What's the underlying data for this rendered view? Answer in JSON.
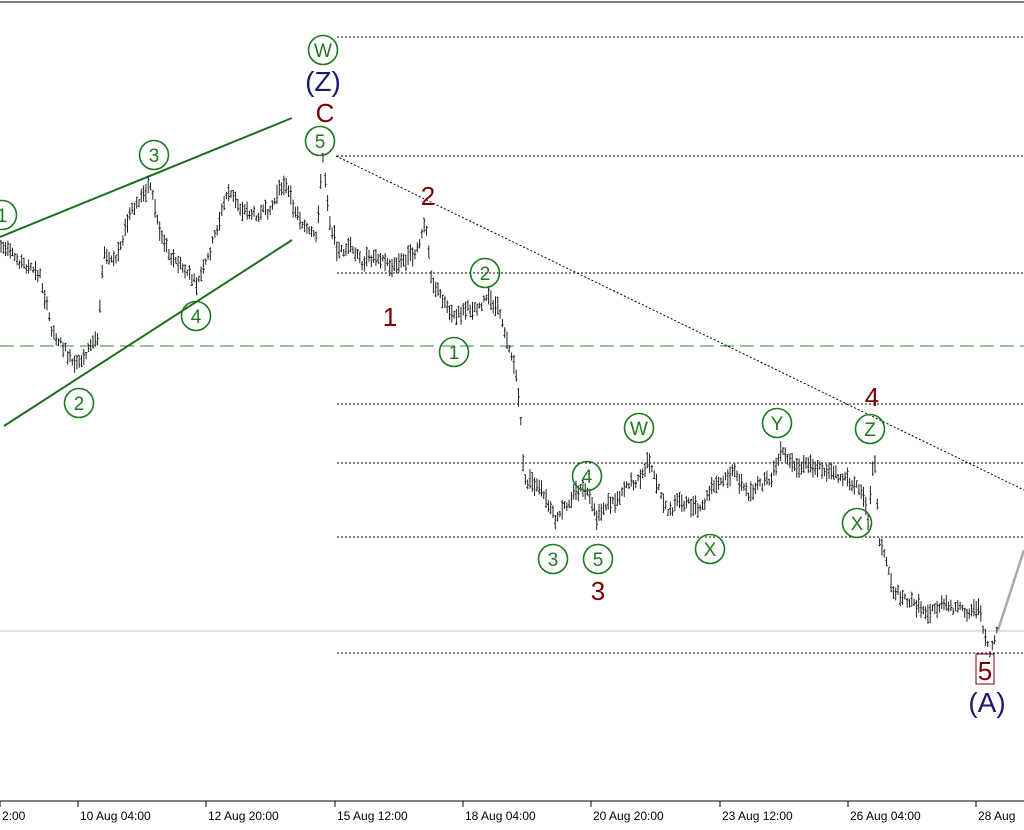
{
  "chart_data": {
    "type": "line",
    "x_tick_labels": [
      "2:00",
      "10 Aug 04:00",
      "12 Aug 20:00",
      "15 Aug 12:00",
      "18 Aug 04:00",
      "20 Aug 20:00",
      "23 Aug 12:00",
      "26 Aug 04:00",
      "28 Aug"
    ],
    "colors": {
      "price_bars": "#222222",
      "wave_green": "#1f7a1f",
      "wave_red": "#7a0000",
      "wave_blue": "#1a1a6e",
      "grid": "#000000",
      "horizontal_level": "#2e8b2e",
      "projection": "#aaaaaa"
    },
    "wave_labels": {
      "circled_green": [
        "1",
        "2",
        "3",
        "4",
        "W",
        "5",
        "2",
        "1",
        "3",
        "4",
        "5",
        "W",
        "X",
        "Y",
        "Z",
        "X"
      ],
      "red": [
        "C",
        "2",
        "1",
        "3",
        "4",
        "5"
      ],
      "blue": [
        "(Z)",
        "(A)"
      ]
    }
  }
}
